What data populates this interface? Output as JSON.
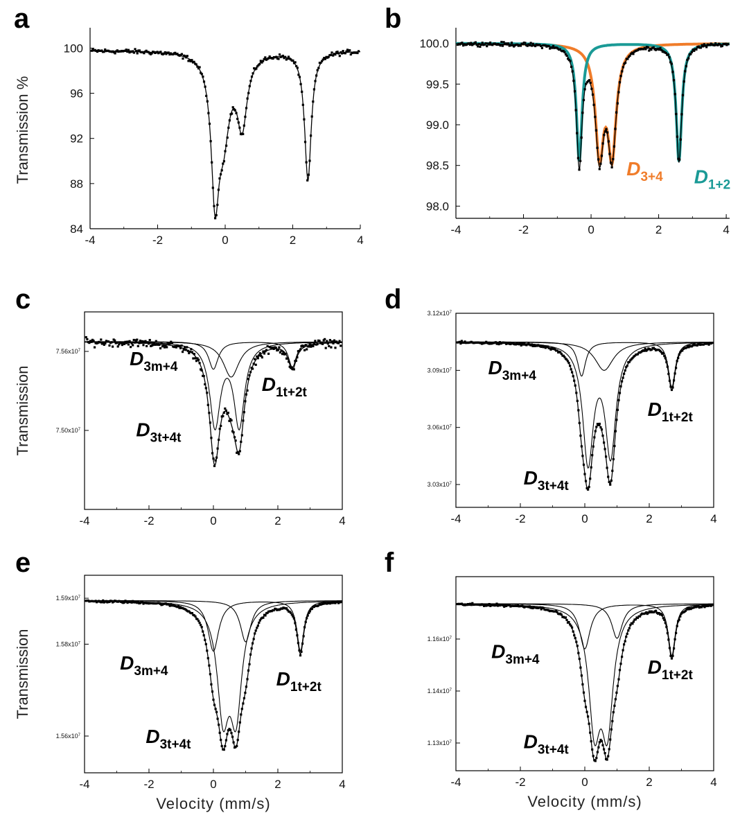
{
  "chart_data": [
    {
      "panel": "a",
      "type": "scatter",
      "ylabel": "Transmission %",
      "xlabel": "",
      "xlim": [
        -4,
        4
      ],
      "ylim": [
        84,
        101.5
      ],
      "xticks": [
        "-4",
        "-2",
        "0",
        "2",
        "4"
      ],
      "yticks": [
        "84",
        "88",
        "92",
        "96",
        "100"
      ],
      "ytick_values": [
        84,
        88,
        92,
        96,
        100
      ],
      "baseline": 99.8,
      "noise": 0.25,
      "series": [
        {
          "role": "fit",
          "components": [
            {
              "center": -0.3,
              "depth": 11.6,
              "hwhm": 0.14
            },
            {
              "center": -0.05,
              "depth": 6.5,
              "hwhm": 0.22
            },
            {
              "center": 0.5,
              "depth": 6.2,
              "hwhm": 0.18
            },
            {
              "center": 2.45,
              "depth": 11.4,
              "hwhm": 0.12
            }
          ],
          "color": "#000000"
        }
      ],
      "annotations": []
    },
    {
      "panel": "b",
      "type": "scatter",
      "ylabel": "",
      "xlabel": "",
      "xlim": [
        -4,
        4.1
      ],
      "ylim": [
        97.85,
        100.15
      ],
      "xticks": [
        "-4",
        "-2",
        "0",
        "2",
        "4"
      ],
      "yticks": [
        "98.0",
        "98.5",
        "99.0",
        "99.5",
        "100.0"
      ],
      "ytick_values": [
        98.0,
        98.5,
        99.0,
        99.5,
        100.0
      ],
      "baseline": 100.0,
      "noise": 0.03,
      "series": [
        {
          "name": "D3+4",
          "role": "component",
          "color": "#f07c2a",
          "components": [
            {
              "center": 0.25,
              "depth": 1.3,
              "hwhm": 0.15
            },
            {
              "center": 0.62,
              "depth": 1.3,
              "hwhm": 0.15
            }
          ]
        },
        {
          "name": "D1+2",
          "role": "component",
          "color": "#1a9a96",
          "components": [
            {
              "center": -0.35,
              "depth": 1.45,
              "hwhm": 0.1
            },
            {
              "center": 2.6,
              "depth": 1.45,
              "hwhm": 0.1
            }
          ]
        }
      ],
      "annotations": [
        {
          "label": "D",
          "sub": "3+4",
          "color": "#f07c2a",
          "x": 1.05,
          "y": 98.38
        },
        {
          "label": "D",
          "sub": "1+2",
          "color": "#1a9a96",
          "x": 3.05,
          "y": 98.28
        }
      ]
    },
    {
      "panel": "c",
      "type": "scatter",
      "ylabel": "Transmission",
      "xlabel": "",
      "xlim": [
        -4,
        4
      ],
      "ylim": [
        7.475,
        7.575
      ],
      "xticks": [
        "-4",
        "-2",
        "0",
        "2",
        "4"
      ],
      "yticks": [
        "7.56x10",
        "7.50x10"
      ],
      "ytick_values": [
        7.555,
        7.515
      ],
      "baseline": 7.56,
      "noise": 0.0025,
      "series": [
        {
          "role": "component",
          "components": [
            {
              "center": 0.0,
              "depth": 0.014,
              "hwhm": 0.18
            },
            {
              "center": 2.45,
              "depth": 0.013,
              "hwhm": 0.15
            }
          ]
        },
        {
          "role": "component",
          "components": [
            {
              "center": 0.05,
              "depth": 0.042,
              "hwhm": 0.2
            },
            {
              "center": 0.8,
              "depth": 0.042,
              "hwhm": 0.2
            }
          ]
        },
        {
          "role": "component",
          "components": [
            {
              "center": 0.55,
              "depth": 0.018,
              "hwhm": 0.3
            }
          ]
        }
      ],
      "annotations": [
        {
          "label": "D",
          "sub": "3m+4",
          "x": -2.6,
          "y": 7.548
        },
        {
          "label": "D",
          "sub": "3t+4t",
          "x": -2.4,
          "y": 7.512
        },
        {
          "label": "D",
          "sub": "1t+2t",
          "x": 1.5,
          "y": 7.535
        }
      ]
    },
    {
      "panel": "d",
      "type": "scatter",
      "ylabel": "",
      "xlabel": "",
      "xlim": [
        -4,
        4
      ],
      "ylim": [
        3.018,
        3.12
      ],
      "xticks": [
        "-4",
        "-2",
        "0",
        "2",
        "4"
      ],
      "yticks": [
        "3.12x10",
        "3.09x10",
        "3.06x10",
        "3.03x10"
      ],
      "ytick_values": [
        3.12,
        3.09,
        3.06,
        3.03
      ],
      "baseline": 3.105,
      "noise": 0.0008,
      "series": [
        {
          "role": "component",
          "components": [
            {
              "center": -0.1,
              "depth": 0.018,
              "hwhm": 0.15
            },
            {
              "center": 2.7,
              "depth": 0.024,
              "hwhm": 0.13
            }
          ]
        },
        {
          "role": "component",
          "components": [
            {
              "center": 0.1,
              "depth": 0.062,
              "hwhm": 0.2
            },
            {
              "center": 0.8,
              "depth": 0.058,
              "hwhm": 0.2
            }
          ]
        },
        {
          "role": "component",
          "components": [
            {
              "center": 0.6,
              "depth": 0.015,
              "hwhm": 0.35
            }
          ]
        }
      ],
      "annotations": [
        {
          "label": "D",
          "sub": "3m+4",
          "x": -3.0,
          "y": 3.088
        },
        {
          "label": "D",
          "sub": "1t+2t",
          "x": 1.95,
          "y": 3.066
        },
        {
          "label": "D",
          "sub": "3t+4t",
          "x": -1.9,
          "y": 3.03
        }
      ]
    },
    {
      "panel": "e",
      "type": "scatter",
      "ylabel": "Transmission",
      "xlabel": "Velocity (mm/s)",
      "xlim": [
        -4,
        4
      ],
      "ylim": [
        1.552,
        1.595
      ],
      "xticks": [
        "-4",
        "-2",
        "0",
        "2",
        "4"
      ],
      "yticks": [
        "1.59x10",
        "1.58x10",
        "1.56x10"
      ],
      "ytick_values": [
        1.59,
        1.58,
        1.56
      ],
      "baseline": 1.5895,
      "noise": 0.0003,
      "series": [
        {
          "role": "component",
          "components": [
            {
              "center": 0.0,
              "depth": 0.011,
              "hwhm": 0.2
            },
            {
              "center": 2.7,
              "depth": 0.011,
              "hwhm": 0.13
            }
          ]
        },
        {
          "role": "component",
          "components": [
            {
              "center": 0.3,
              "depth": 0.023,
              "hwhm": 0.22
            },
            {
              "center": 0.7,
              "depth": 0.023,
              "hwhm": 0.22
            }
          ]
        },
        {
          "role": "component",
          "components": [
            {
              "center": 1.0,
              "depth": 0.009,
              "hwhm": 0.2
            }
          ]
        }
      ],
      "annotations": [
        {
          "label": "D",
          "sub": "3m+4",
          "x": -2.9,
          "y": 1.5745
        },
        {
          "label": "D",
          "sub": "1t+2t",
          "x": 1.95,
          "y": 1.571
        },
        {
          "label": "D",
          "sub": "3t+4t",
          "x": -2.1,
          "y": 1.5585
        }
      ]
    },
    {
      "panel": "f",
      "type": "scatter",
      "ylabel": "",
      "xlabel": "Velocity (mm/s)",
      "xlim": [
        -4,
        4
      ],
      "ylim": [
        1.122,
        1.178
      ],
      "xticks": [
        "-4",
        "-2",
        "0",
        "2",
        "4"
      ],
      "yticks": [
        "1.16x10",
        "1.14x10",
        "1.13x10"
      ],
      "ytick_values": [
        1.16,
        1.145,
        1.13
      ],
      "baseline": 1.1702,
      "noise": 0.0004,
      "series": [
        {
          "role": "component",
          "components": [
            {
              "center": 0.0,
              "depth": 0.013,
              "hwhm": 0.2
            },
            {
              "center": 2.7,
              "depth": 0.015,
              "hwhm": 0.13
            }
          ]
        },
        {
          "role": "component",
          "components": [
            {
              "center": 0.3,
              "depth": 0.033,
              "hwhm": 0.22
            },
            {
              "center": 0.7,
              "depth": 0.033,
              "hwhm": 0.22
            }
          ]
        },
        {
          "role": "component",
          "components": [
            {
              "center": 1.0,
              "depth": 0.01,
              "hwhm": 0.2
            }
          ]
        }
      ],
      "annotations": [
        {
          "label": "D",
          "sub": "3m+4",
          "x": -2.9,
          "y": 1.1545
        },
        {
          "label": "D",
          "sub": "1t+2t",
          "x": 1.95,
          "y": 1.15
        },
        {
          "label": "D",
          "sub": "3t+4t",
          "x": -1.9,
          "y": 1.1285
        }
      ]
    }
  ]
}
